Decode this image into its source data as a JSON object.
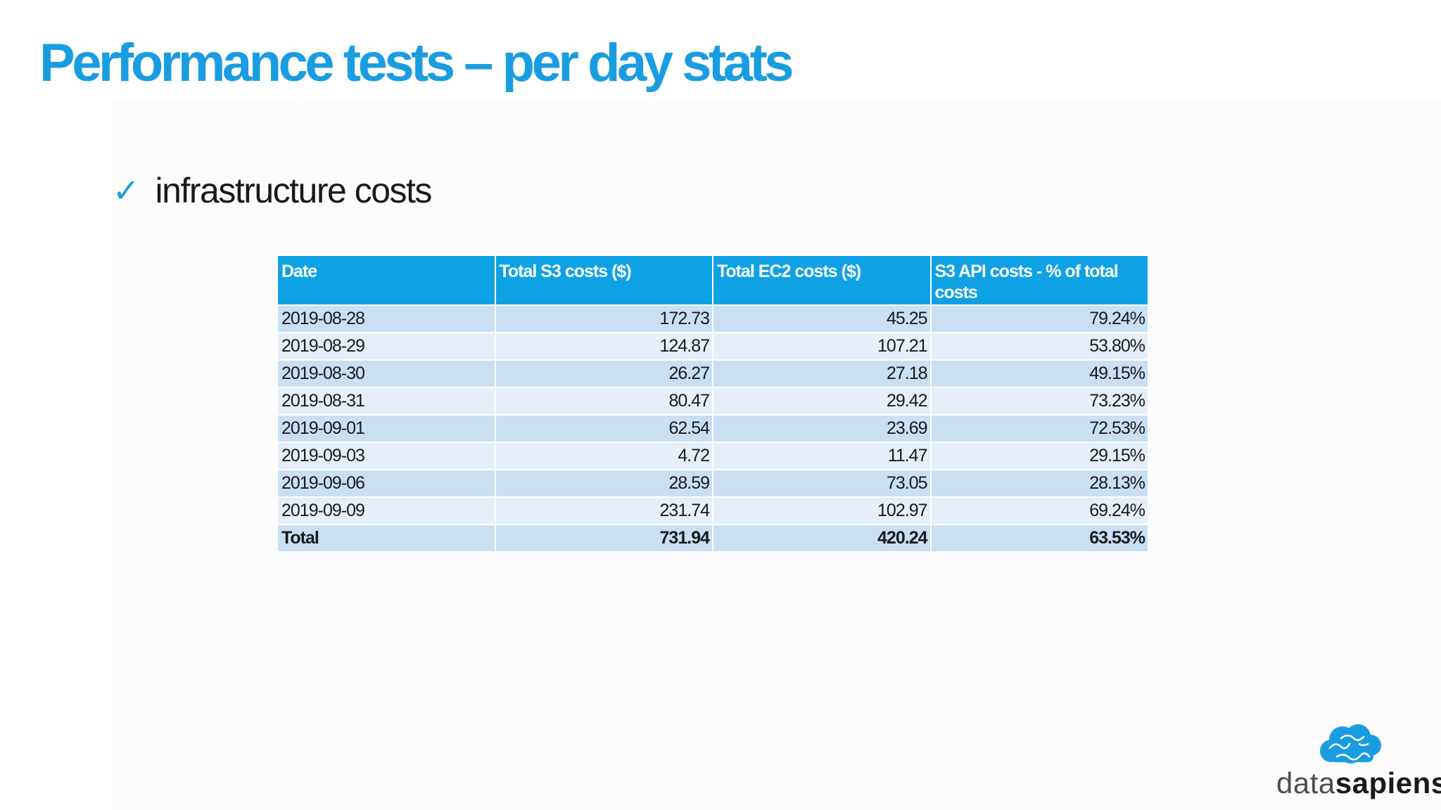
{
  "title": "Performance tests – per day stats",
  "bullet": {
    "icon": "checkmark-icon",
    "glyph": "✓",
    "text": "infrastructure costs"
  },
  "table": {
    "headers": [
      "Date",
      "Total S3 costs ($)",
      "Total EC2 costs ($)",
      "S3 API costs - % of total costs"
    ],
    "rows": [
      [
        "2019-08-28",
        "172.73",
        "45.25",
        "79.24%"
      ],
      [
        "2019-08-29",
        "124.87",
        "107.21",
        "53.80%"
      ],
      [
        "2019-08-30",
        "26.27",
        "27.18",
        "49.15%"
      ],
      [
        "2019-08-31",
        "80.47",
        "29.42",
        "73.23%"
      ],
      [
        "2019-09-01",
        "62.54",
        "23.69",
        "72.53%"
      ],
      [
        "2019-09-03",
        "4.72",
        "11.47",
        "29.15%"
      ],
      [
        "2019-09-06",
        "28.59",
        "73.05",
        "28.13%"
      ],
      [
        "2019-09-09",
        "231.74",
        "102.97",
        "69.24%"
      ]
    ],
    "total": [
      "Total",
      "731.94",
      "420.24",
      "63.53%"
    ]
  },
  "logo": {
    "icon": "brain-cloud-icon",
    "word_light": "data",
    "word_bold": "sapiens"
  },
  "colors": {
    "accent": "#1a9de0",
    "header_bg": "#0ea2e5",
    "row_odd": "#c9dff4",
    "row_even": "#e6eef9"
  }
}
